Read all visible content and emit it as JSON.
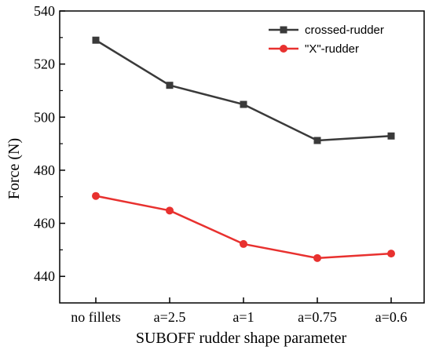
{
  "chart_data": {
    "type": "line",
    "categories": [
      "no fillets",
      "a=2.5",
      "a=1",
      "a=0.75",
      "a=0.6"
    ],
    "series": [
      {
        "name": "crossed-rudder",
        "values": [
          529,
          512,
          504.8,
          491.2,
          492.9
        ],
        "color": "#3a3a3a",
        "marker": "square"
      },
      {
        "name": "\"X\"-rudder",
        "values": [
          470.3,
          464.8,
          452.2,
          446.9,
          448.6
        ],
        "color": "#e8312f",
        "marker": "circle"
      }
    ],
    "xlabel": "SUBOFF rudder shape parameter",
    "ylabel": "Force (N)",
    "ylim": [
      430,
      540
    ],
    "yticks": [
      440,
      460,
      480,
      500,
      520,
      540
    ],
    "grid": false,
    "legend": "top-right"
  }
}
